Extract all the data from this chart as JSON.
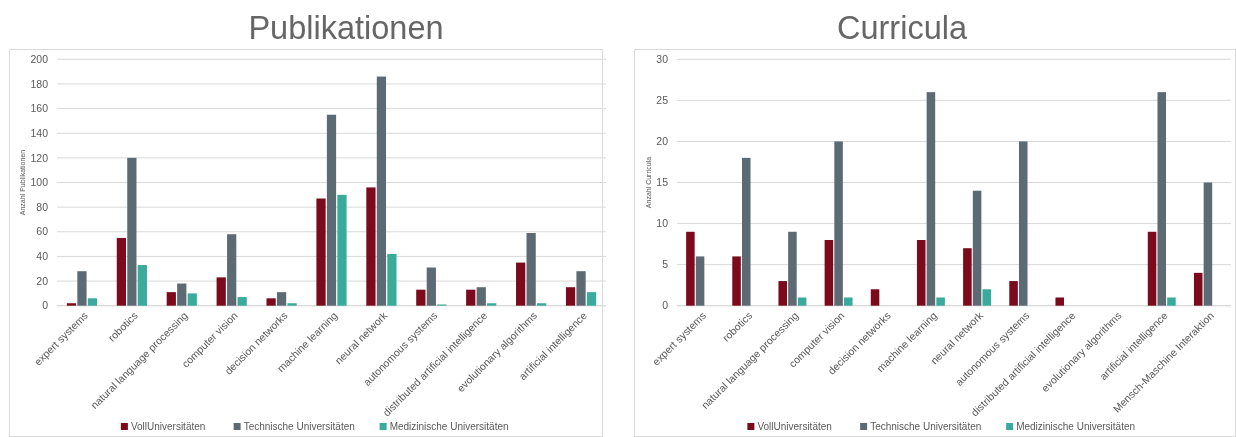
{
  "chart_data": [
    {
      "type": "bar",
      "title": "Publikationen",
      "ylabel": "Anzahl Publikationen",
      "categories": [
        "expert systems",
        "robotics",
        "natural language processing",
        "computer vision",
        "decision networks",
        "machine learning",
        "neural network",
        "autonomous systems",
        "distributed artificial intelligence",
        "evolutionary algorithms",
        "artificial intelligence"
      ],
      "series": [
        {
          "name": "VollUniversitäten",
          "color": "#7a0a1c",
          "values": [
            2,
            55,
            11,
            23,
            6,
            87,
            96,
            13,
            13,
            35,
            15
          ]
        },
        {
          "name": "Technische Universitäten",
          "color": "#5c6a73",
          "values": [
            28,
            120,
            18,
            58,
            11,
            155,
            186,
            31,
            15,
            59,
            28
          ]
        },
        {
          "name": "Medizinische Universitäten",
          "color": "#3aaa9b",
          "values": [
            6,
            33,
            10,
            7,
            2,
            90,
            42,
            1,
            2,
            2,
            11
          ]
        }
      ],
      "ylim": [
        0,
        200
      ],
      "yticks": [
        0,
        20,
        40,
        60,
        80,
        100,
        120,
        140,
        160,
        180,
        200
      ],
      "grid": "y",
      "legend": "bottom"
    },
    {
      "type": "bar",
      "title": "Curricula",
      "ylabel": "Anzahl Curricula",
      "categories": [
        "expert systems",
        "robotics",
        "natural language processing",
        "computer vision",
        "decision networks",
        "machine learning",
        "neural network",
        "autonomous systems",
        "distributed artificial intelligence",
        "evolutionary algorithms",
        "artificial intelligence",
        "Mensch-Maschine Interaktion"
      ],
      "series": [
        {
          "name": "VollUniversitäten",
          "color": "#7a0a1c",
          "values": [
            9,
            6,
            3,
            8,
            2,
            8,
            7,
            3,
            1,
            null,
            9,
            4
          ]
        },
        {
          "name": "Technische Universitäten",
          "color": "#5c6a73",
          "values": [
            6,
            18,
            9,
            20,
            null,
            26,
            14,
            20,
            null,
            null,
            26,
            15
          ]
        },
        {
          "name": "Medizinische Universitäten",
          "color": "#3aaa9b",
          "values": [
            null,
            null,
            1,
            1,
            null,
            1,
            2,
            null,
            null,
            null,
            1,
            null
          ]
        }
      ],
      "ylim": [
        0,
        30
      ],
      "yticks": [
        0,
        5,
        10,
        15,
        20,
        25,
        30
      ],
      "grid": "y",
      "legend": "bottom"
    }
  ]
}
